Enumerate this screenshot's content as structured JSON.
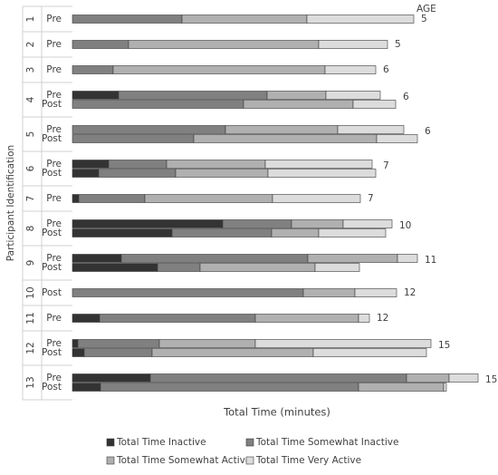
{
  "chart_data": {
    "type": "stacked-bar-h",
    "y_label": "Participant Identification",
    "x_label": "Total Time (minutes)",
    "age_header": "AGE",
    "xlim": [
      0,
      450
    ],
    "groups": [
      {
        "id": "1",
        "age": 5,
        "phases": [
          "Pre"
        ]
      },
      {
        "id": "2",
        "age": 5,
        "phases": [
          "Pre"
        ]
      },
      {
        "id": "3",
        "age": 6,
        "phases": [
          "Pre"
        ]
      },
      {
        "id": "4",
        "age": 6,
        "phases": [
          "Pre",
          "Post"
        ]
      },
      {
        "id": "5",
        "age": 6,
        "phases": [
          "Pre",
          "Post"
        ]
      },
      {
        "id": "6",
        "age": 7,
        "phases": [
          "Pre",
          "Post"
        ]
      },
      {
        "id": "7",
        "age": 7,
        "phases": [
          "Pre"
        ]
      },
      {
        "id": "8",
        "age": 10,
        "phases": [
          "Pre",
          "Post"
        ]
      },
      {
        "id": "9",
        "age": 11,
        "phases": [
          "Pre",
          "Post"
        ]
      },
      {
        "id": "10",
        "age": 12,
        "phases": [
          "Post"
        ]
      },
      {
        "id": "11",
        "age": 12,
        "phases": [
          "Pre"
        ]
      },
      {
        "id": "12",
        "age": 15,
        "phases": [
          "Pre",
          "Post"
        ]
      },
      {
        "id": "13",
        "age": 15,
        "phases": [
          "Pre",
          "Post"
        ]
      }
    ],
    "series": [
      {
        "name": "Total Time Inactive",
        "color": "#333333",
        "values": [
          0,
          0,
          0,
          51,
          0,
          0,
          0,
          40,
          29,
          7,
          166,
          110,
          54,
          94,
          0,
          30,
          6,
          13,
          86,
          31
        ]
      },
      {
        "name": "Total Time Somewhat Inactive",
        "color": "#808080",
        "values": [
          121,
          62,
          45,
          164,
          189,
          169,
          134,
          64,
          85,
          73,
          76,
          110,
          206,
          47,
          255,
          172,
          90,
          75,
          283,
          285
        ]
      },
      {
        "name": "Total Time Somewhat Active",
        "color": "#b0b0b0",
        "values": [
          138,
          210,
          234,
          65,
          121,
          124,
          202,
          109,
          102,
          141,
          57,
          52,
          99,
          127,
          57,
          114,
          106,
          178,
          47,
          94
        ]
      },
      {
        "name": "Total Time Very Active",
        "color": "#dcdcdc",
        "values": [
          118,
          76,
          56,
          60,
          47,
          73,
          45,
          118,
          119,
          97,
          54,
          74,
          22,
          49,
          46,
          12,
          194,
          125,
          32,
          3
        ]
      }
    ]
  }
}
